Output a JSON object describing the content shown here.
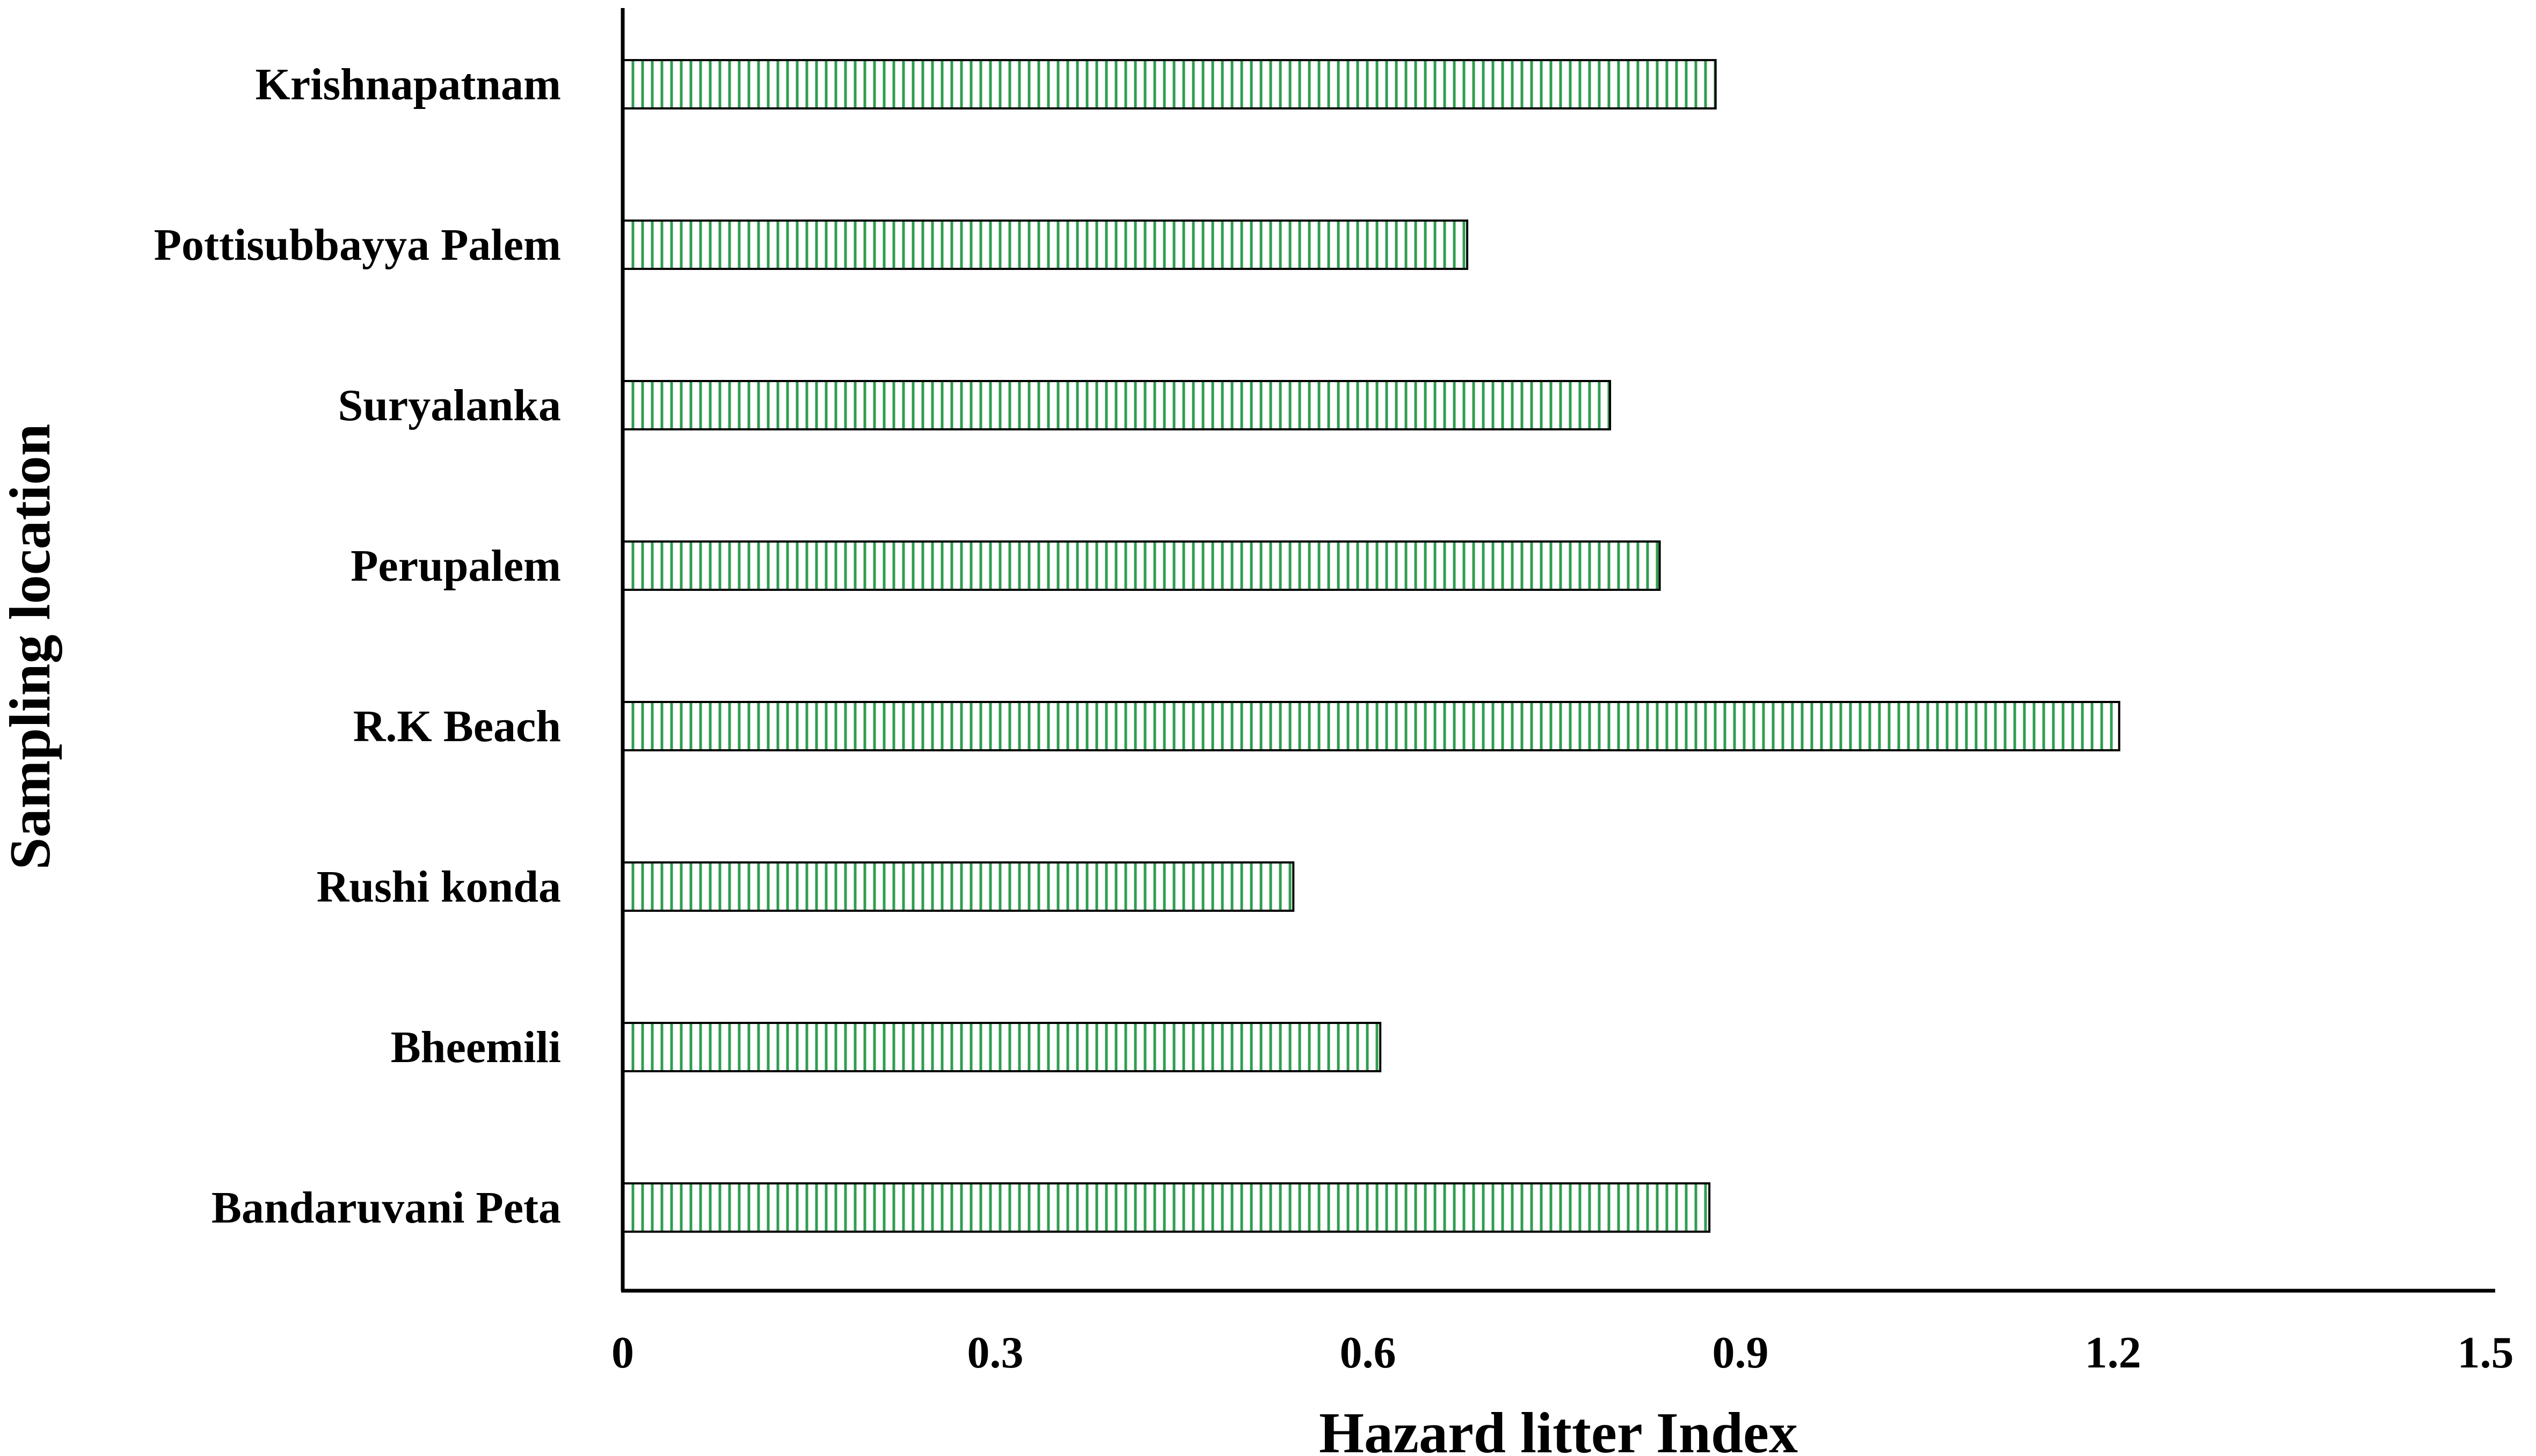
{
  "chart_data": {
    "type": "bar",
    "orientation": "horizontal",
    "categories": [
      "Krishnapatnam",
      "Pottisubbayya Palem",
      "Suryalanka",
      "Perupalem",
      "R.K Beach",
      "Rushi konda",
      "Bheemili",
      "Bandaruvani Peta"
    ],
    "values": [
      0.88,
      0.68,
      0.795,
      0.835,
      1.205,
      0.54,
      0.61,
      0.875
    ],
    "title": "",
    "xlabel": "Hazard litter Index",
    "ylabel": "Sampling location",
    "xlim": [
      0,
      1.5
    ],
    "xticks": [
      "0",
      "0.3",
      "0.6",
      "0.9",
      "1.2",
      "1.5"
    ],
    "grid": false,
    "legend": "none",
    "bar_fill_color": "#2e9e4f",
    "bar_edge_color": "#000000",
    "bar_pattern": "vertical-hatch"
  }
}
